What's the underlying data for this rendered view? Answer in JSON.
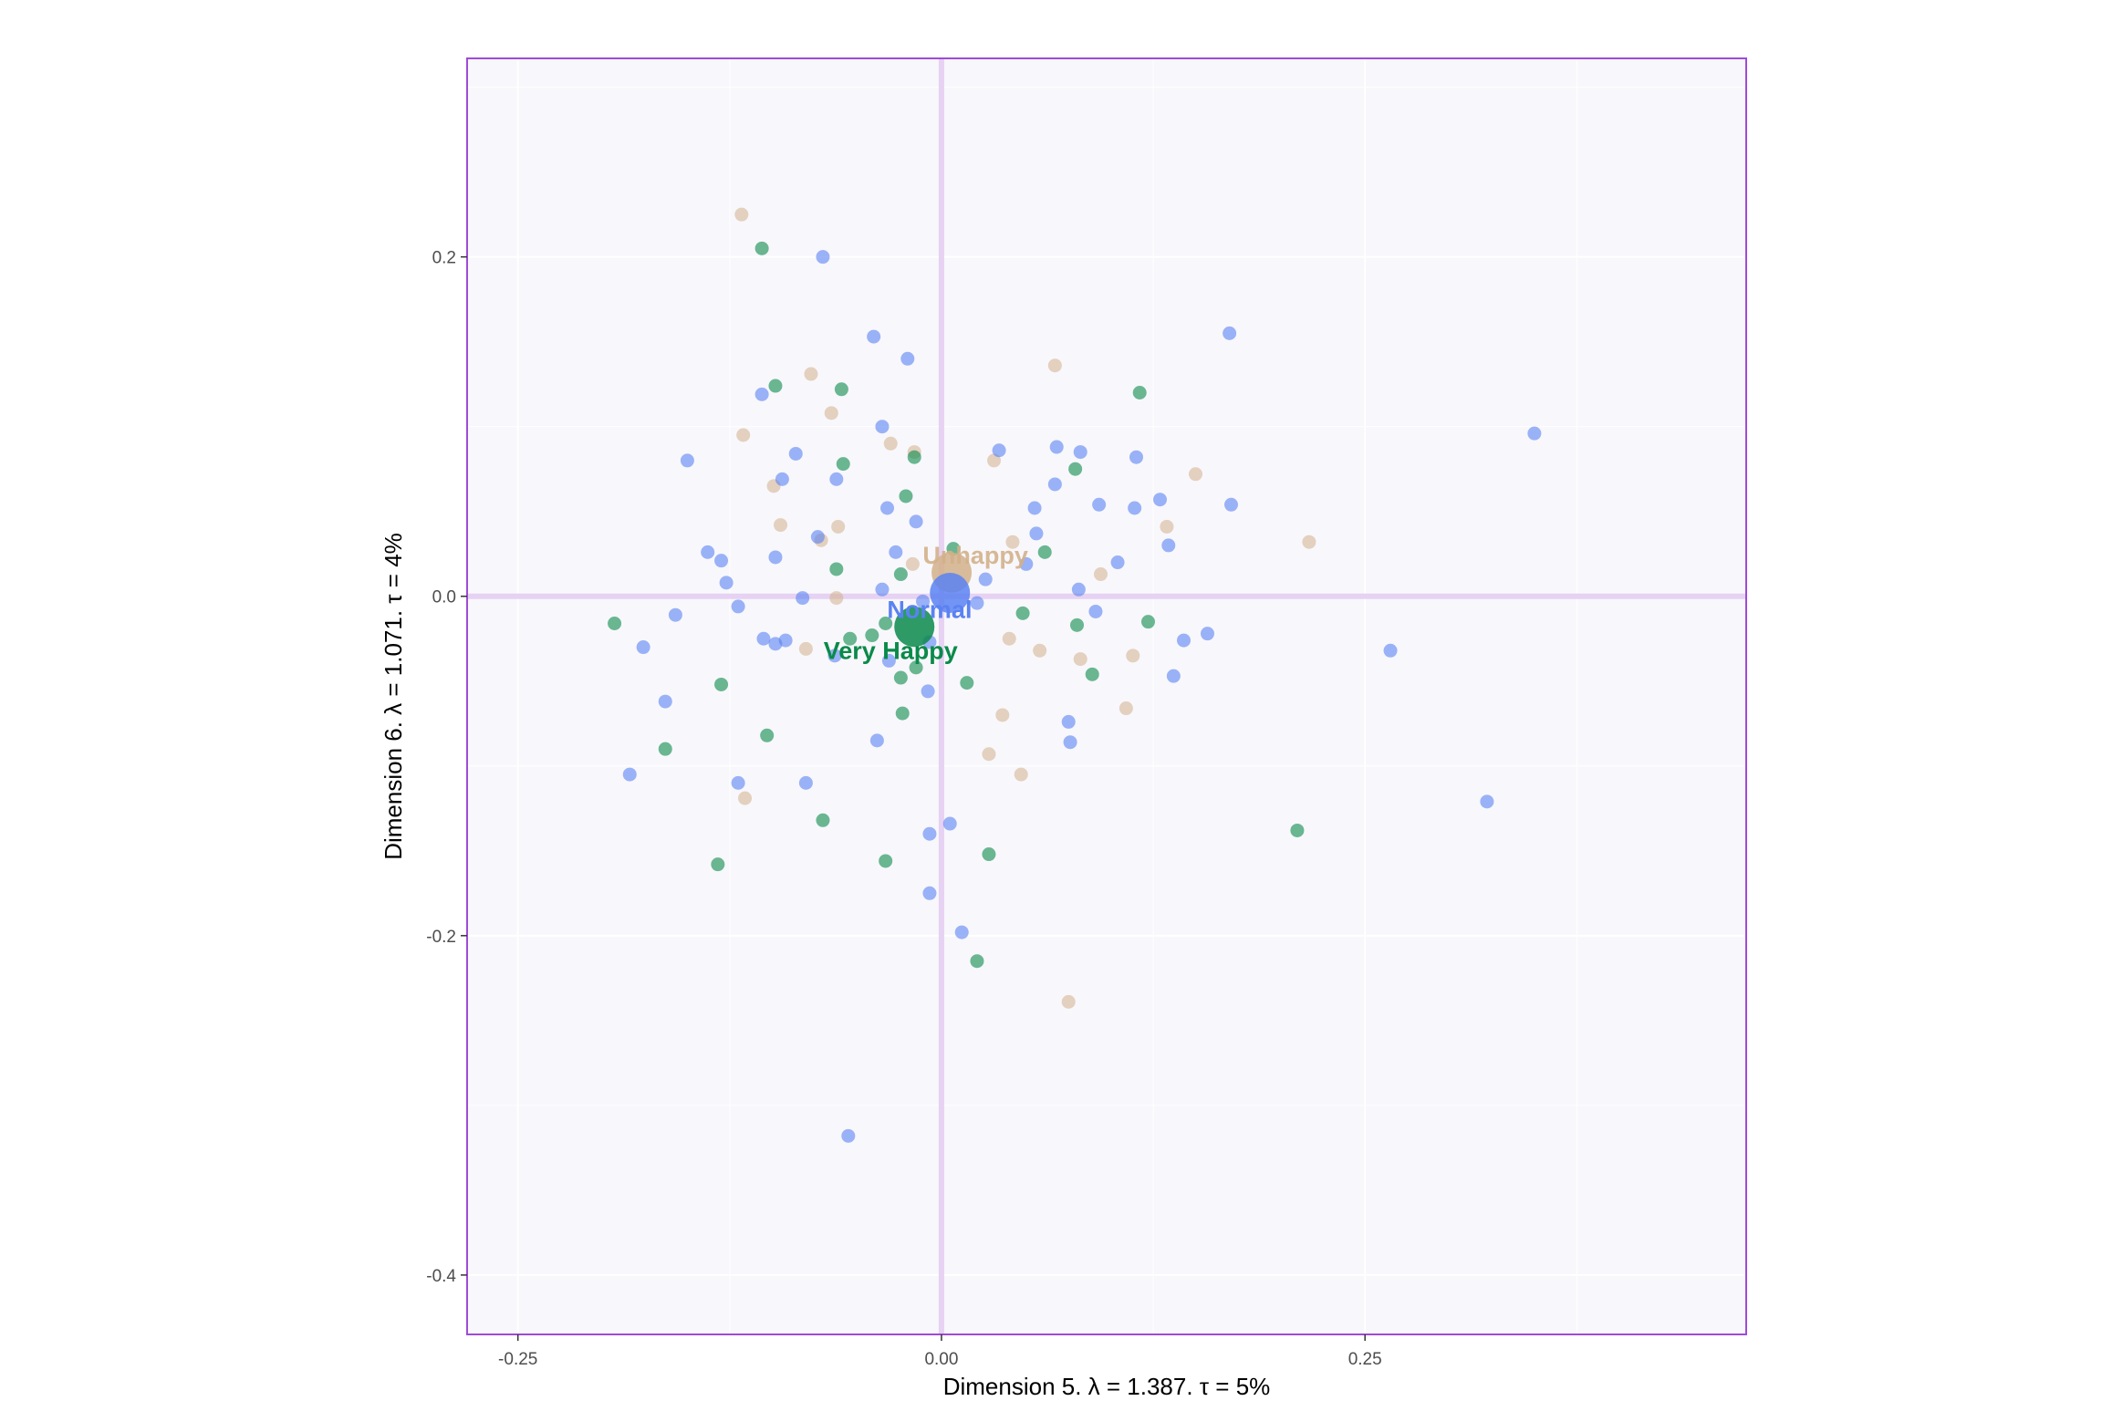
{
  "chart_data": {
    "type": "scatter",
    "xlabel": "Dimension 5.   λ = 1.387.  τ = 5%",
    "ylabel": "Dimension 6.   λ = 1.071.  τ = 4%",
    "xlim": [
      -0.28,
      0.475
    ],
    "ylim": [
      -0.435,
      0.317
    ],
    "x_ticks": [
      -0.25,
      0.0,
      0.25
    ],
    "x_tick_labels": [
      "-0.25",
      "0.00",
      "0.25"
    ],
    "y_ticks": [
      0.2,
      0.0,
      -0.2,
      -0.4
    ],
    "y_tick_labels": [
      "0.2",
      "0.0",
      "-0.2",
      "-0.4"
    ],
    "grid": true,
    "legend": "none",
    "colors": {
      "Unhappy": "#d2b08a",
      "Normal": "#5a82f2",
      "Very Happy": "#0a8a4a",
      "panel_background": "#f8f7fc",
      "panel_border": "#a04ad8",
      "reference_lines": "#e6d2f2",
      "grid": "#ffffff"
    },
    "series": [
      {
        "name": "Normal",
        "centroid": [
          0.005,
          0.002
        ],
        "label_position": [
          -0.007,
          -0.008
        ],
        "points": [
          [
            -0.07,
            0.2
          ],
          [
            -0.04,
            0.153
          ],
          [
            -0.02,
            0.14
          ],
          [
            0.17,
            0.155
          ],
          [
            -0.106,
            0.119
          ],
          [
            -0.035,
            0.1
          ],
          [
            -0.086,
            0.084
          ],
          [
            -0.15,
            0.08
          ],
          [
            0.034,
            0.086
          ],
          [
            0.068,
            0.088
          ],
          [
            0.082,
            0.085
          ],
          [
            0.115,
            0.082
          ],
          [
            -0.094,
            0.069
          ],
          [
            -0.062,
            0.069
          ],
          [
            0.067,
            0.066
          ],
          [
            0.093,
            0.054
          ],
          [
            0.114,
            0.052
          ],
          [
            0.129,
            0.057
          ],
          [
            0.171,
            0.054
          ],
          [
            0.35,
            0.096
          ],
          [
            -0.032,
            0.052
          ],
          [
            -0.015,
            0.044
          ],
          [
            -0.073,
            0.035
          ],
          [
            0.056,
            0.037
          ],
          [
            0.055,
            0.052
          ],
          [
            -0.138,
            0.026
          ],
          [
            -0.13,
            0.021
          ],
          [
            -0.098,
            0.023
          ],
          [
            -0.027,
            0.026
          ],
          [
            0.05,
            0.019
          ],
          [
            0.104,
            0.02
          ],
          [
            0.134,
            0.03
          ],
          [
            -0.127,
            0.008
          ],
          [
            -0.035,
            0.004
          ],
          [
            0.026,
            0.01
          ],
          [
            0.081,
            0.004
          ],
          [
            -0.082,
            -0.001
          ],
          [
            -0.011,
            -0.003
          ],
          [
            0.021,
            -0.004
          ],
          [
            -0.12,
            -0.006
          ],
          [
            0.091,
            -0.009
          ],
          [
            -0.157,
            -0.011
          ],
          [
            -0.105,
            -0.025
          ],
          [
            -0.098,
            -0.028
          ],
          [
            -0.092,
            -0.026
          ],
          [
            -0.007,
            -0.027
          ],
          [
            0.143,
            -0.026
          ],
          [
            0.157,
            -0.022
          ],
          [
            -0.176,
            -0.03
          ],
          [
            0.265,
            -0.032
          ],
          [
            -0.063,
            -0.035
          ],
          [
            -0.031,
            -0.038
          ],
          [
            -0.163,
            -0.062
          ],
          [
            -0.008,
            -0.056
          ],
          [
            0.137,
            -0.047
          ],
          [
            0.075,
            -0.074
          ],
          [
            -0.038,
            -0.085
          ],
          [
            0.076,
            -0.086
          ],
          [
            -0.184,
            -0.105
          ],
          [
            -0.12,
            -0.11
          ],
          [
            -0.08,
            -0.11
          ],
          [
            0.322,
            -0.121
          ],
          [
            -0.007,
            -0.14
          ],
          [
            0.005,
            -0.134
          ],
          [
            -0.007,
            -0.175
          ],
          [
            0.012,
            -0.198
          ],
          [
            -0.055,
            -0.318
          ]
        ]
      },
      {
        "name": "Unhappy",
        "centroid": [
          0.006,
          0.014
        ],
        "label_position": [
          0.02,
          0.024
        ],
        "points": [
          [
            -0.118,
            0.225
          ],
          [
            -0.077,
            0.131
          ],
          [
            0.067,
            0.136
          ],
          [
            -0.065,
            0.108
          ],
          [
            -0.117,
            0.095
          ],
          [
            -0.03,
            0.09
          ],
          [
            -0.016,
            0.085
          ],
          [
            0.031,
            0.08
          ],
          [
            0.15,
            0.072
          ],
          [
            -0.099,
            0.065
          ],
          [
            -0.095,
            0.042
          ],
          [
            -0.061,
            0.041
          ],
          [
            0.133,
            0.041
          ],
          [
            -0.071,
            0.033
          ],
          [
            0.042,
            0.032
          ],
          [
            0.217,
            0.032
          ],
          [
            -0.017,
            0.019
          ],
          [
            0.094,
            0.013
          ],
          [
            -0.062,
            -0.001
          ],
          [
            0.04,
            -0.025
          ],
          [
            -0.08,
            -0.031
          ],
          [
            0.058,
            -0.032
          ],
          [
            0.082,
            -0.037
          ],
          [
            0.113,
            -0.035
          ],
          [
            0.036,
            -0.07
          ],
          [
            0.109,
            -0.066
          ],
          [
            0.028,
            -0.093
          ],
          [
            0.047,
            -0.105
          ],
          [
            -0.116,
            -0.119
          ],
          [
            0.075,
            -0.239
          ]
        ]
      },
      {
        "name": "Very Happy",
        "centroid": [
          -0.016,
          -0.018
        ],
        "label_position": [
          -0.03,
          -0.032
        ],
        "points": [
          [
            -0.106,
            0.205
          ],
          [
            -0.098,
            0.124
          ],
          [
            -0.059,
            0.122
          ],
          [
            0.117,
            0.12
          ],
          [
            -0.016,
            0.082
          ],
          [
            -0.058,
            0.078
          ],
          [
            0.079,
            0.075
          ],
          [
            -0.021,
            0.059
          ],
          [
            0.007,
            0.028
          ],
          [
            0.061,
            0.026
          ],
          [
            -0.062,
            0.016
          ],
          [
            -0.024,
            0.013
          ],
          [
            -0.193,
            -0.016
          ],
          [
            -0.033,
            -0.016
          ],
          [
            -0.054,
            -0.025
          ],
          [
            -0.041,
            -0.023
          ],
          [
            0.048,
            -0.01
          ],
          [
            0.08,
            -0.017
          ],
          [
            0.122,
            -0.015
          ],
          [
            -0.015,
            -0.042
          ],
          [
            -0.024,
            -0.048
          ],
          [
            0.015,
            -0.051
          ],
          [
            0.089,
            -0.046
          ],
          [
            -0.13,
            -0.052
          ],
          [
            -0.023,
            -0.069
          ],
          [
            -0.103,
            -0.082
          ],
          [
            -0.163,
            -0.09
          ],
          [
            -0.07,
            -0.132
          ],
          [
            -0.132,
            -0.158
          ],
          [
            -0.033,
            -0.156
          ],
          [
            0.028,
            -0.152
          ],
          [
            0.21,
            -0.138
          ],
          [
            0.021,
            -0.215
          ]
        ]
      }
    ]
  }
}
